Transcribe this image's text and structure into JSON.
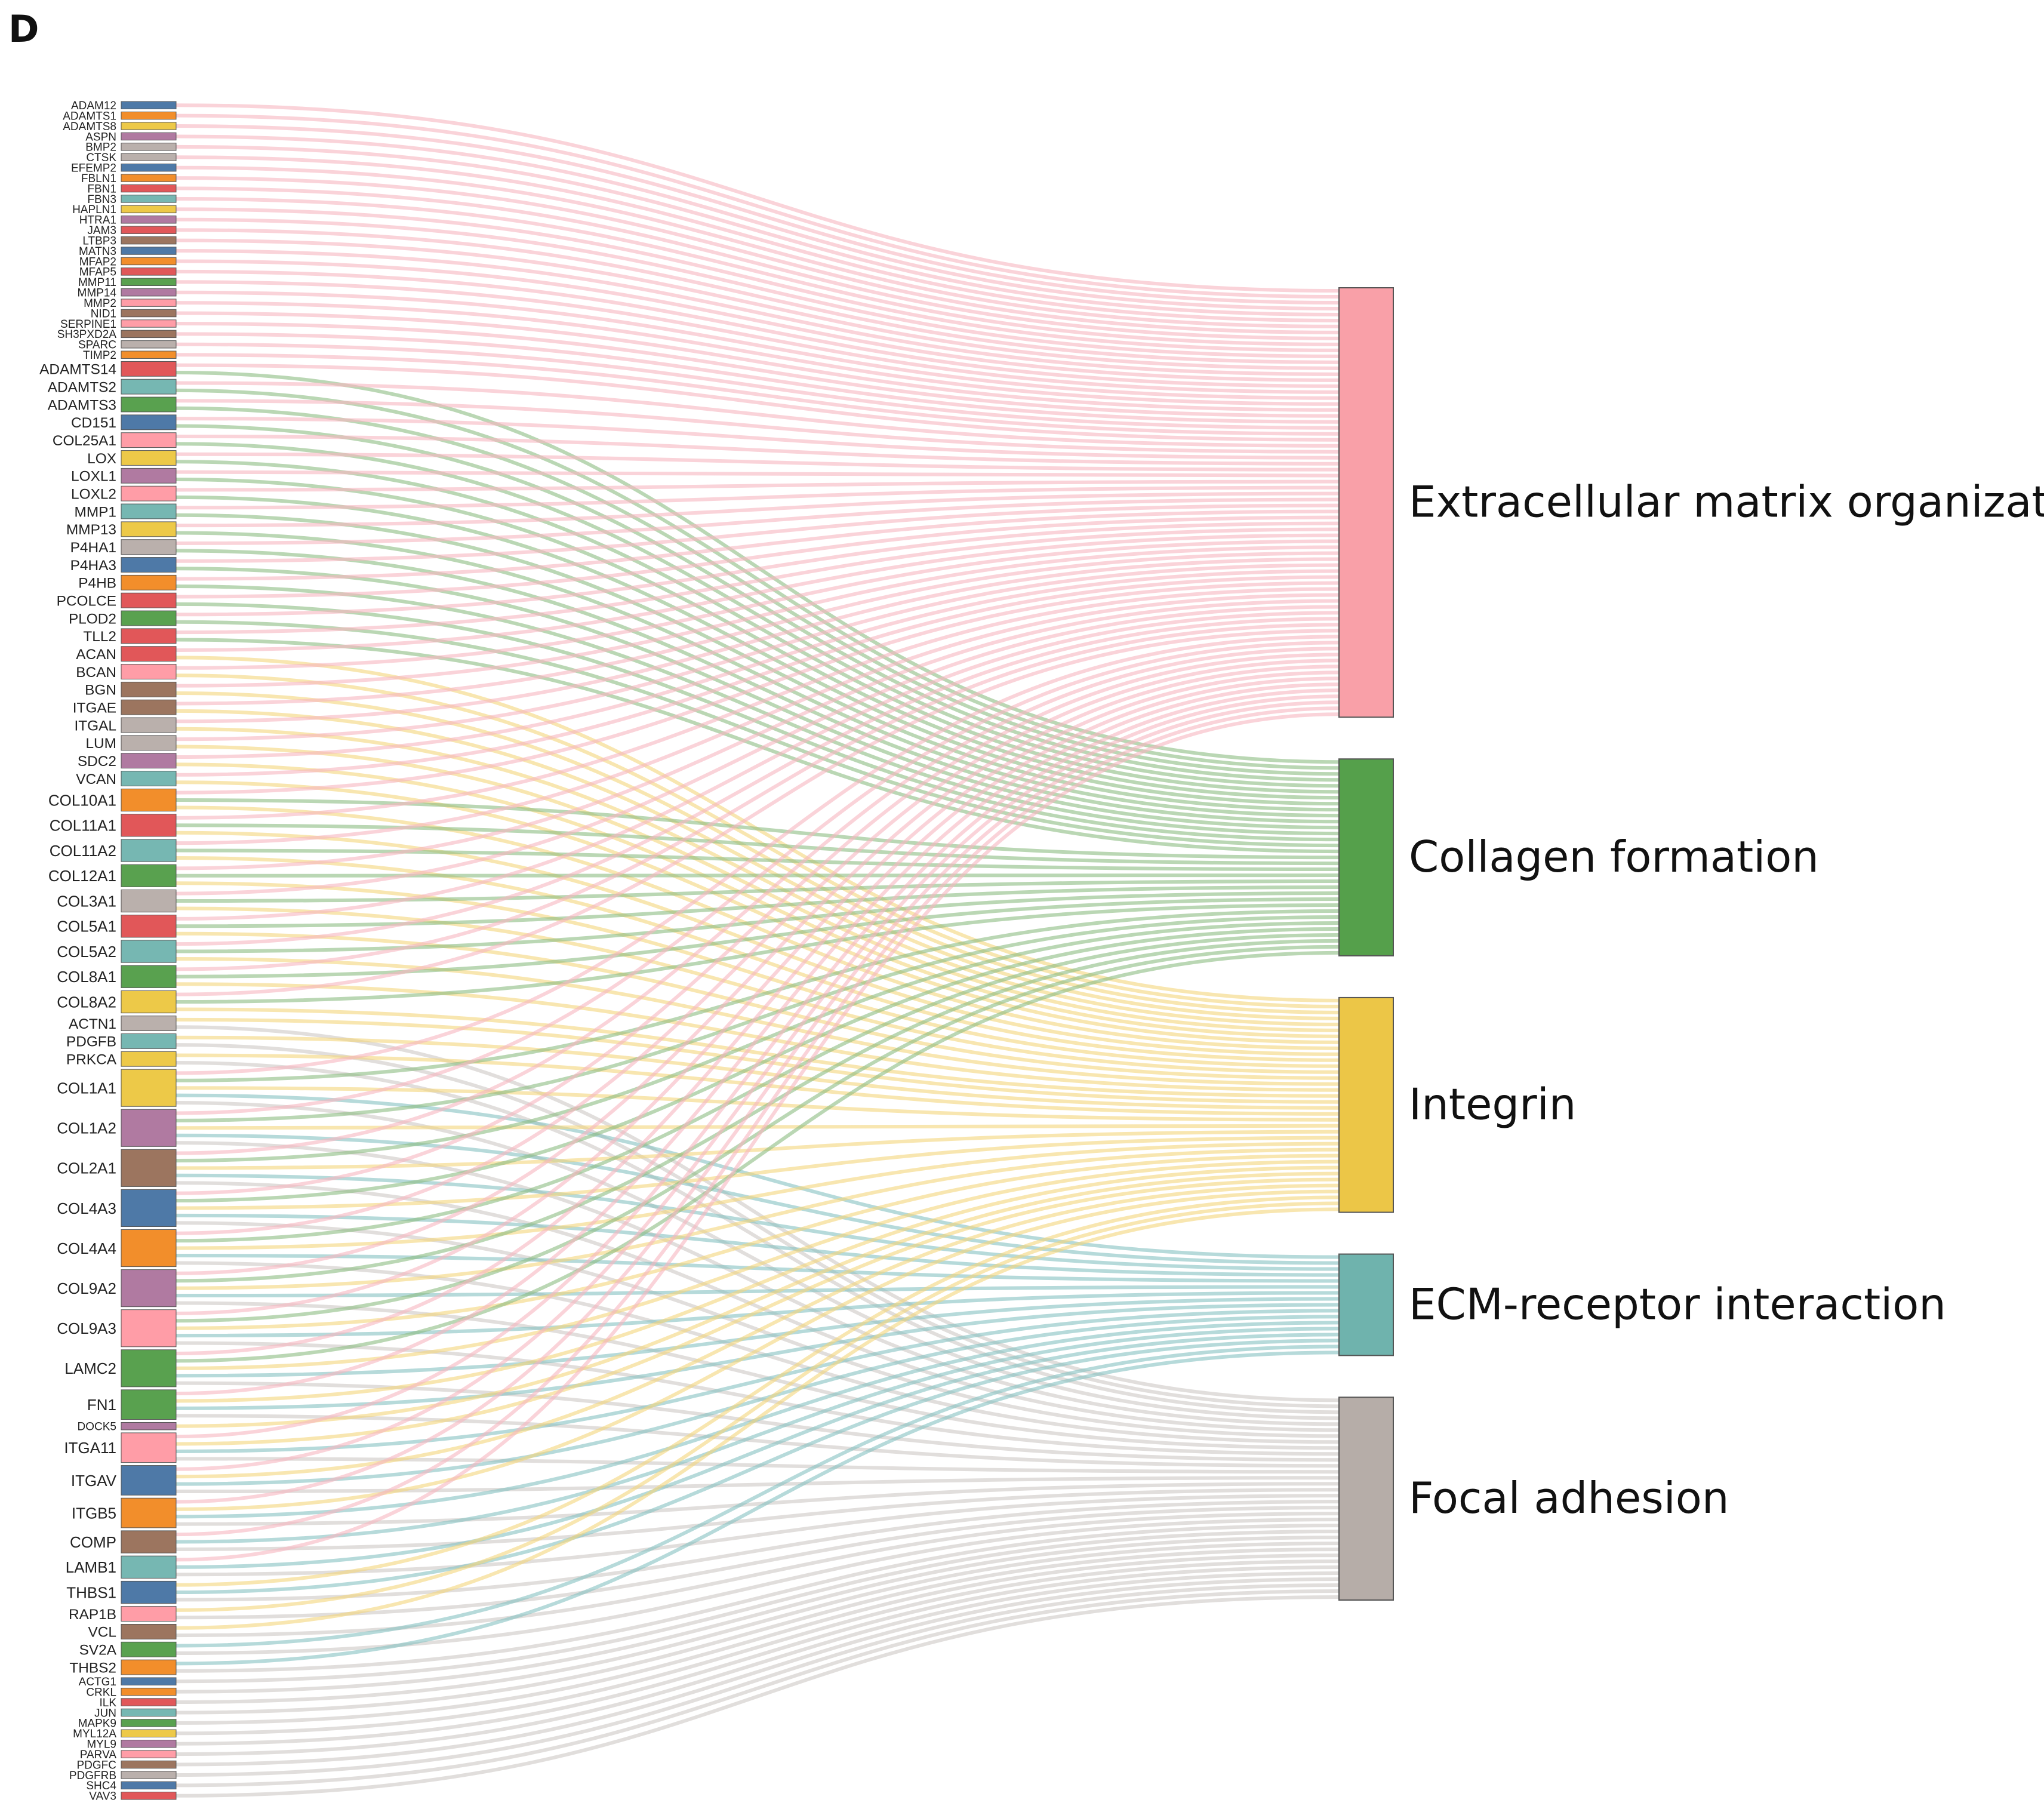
{
  "panel_label": "D",
  "chart_data": {
    "type": "sankey",
    "pathways": [
      {
        "name": "Extracellular matrix organization",
        "color": "#f9a0a8",
        "link_color": "#f7b6c0"
      },
      {
        "name": "Collagen formation",
        "color": "#55a04b",
        "link_color": "#8cbc82"
      },
      {
        "name": "Integrin",
        "color": "#ecc647",
        "link_color": "#f3d67c"
      },
      {
        "name": "ECM-receptor interaction",
        "color": "#6fb3ad",
        "link_color": "#86c2c2"
      },
      {
        "name": "Focal adhesion",
        "color": "#b6ada8",
        "link_color": "#cdc8c5"
      }
    ],
    "genes": [
      {
        "name": "ADAM12",
        "color": "#4e79a7",
        "pathways": [
          0
        ]
      },
      {
        "name": "ADAMTS1",
        "color": "#f28e2b",
        "pathways": [
          0
        ]
      },
      {
        "name": "ADAMTS8",
        "color": "#edc948",
        "pathways": [
          0
        ]
      },
      {
        "name": "ASPN",
        "color": "#b07aa1",
        "pathways": [
          0
        ]
      },
      {
        "name": "BMP2",
        "color": "#bab0ac",
        "pathways": [
          0
        ]
      },
      {
        "name": "CTSK",
        "color": "#bab0ac",
        "pathways": [
          0
        ]
      },
      {
        "name": "EFEMP2",
        "color": "#4e79a7",
        "pathways": [
          0
        ]
      },
      {
        "name": "FBLN1",
        "color": "#f28e2b",
        "pathways": [
          0
        ]
      },
      {
        "name": "FBN1",
        "color": "#e15759",
        "pathways": [
          0
        ]
      },
      {
        "name": "FBN3",
        "color": "#76b7b2",
        "pathways": [
          0
        ]
      },
      {
        "name": "HAPLN1",
        "color": "#edc948",
        "pathways": [
          0
        ]
      },
      {
        "name": "HTRA1",
        "color": "#b07aa1",
        "pathways": [
          0
        ]
      },
      {
        "name": "JAM3",
        "color": "#e15759",
        "pathways": [
          0
        ]
      },
      {
        "name": "LTBP3",
        "color": "#9c755f",
        "pathways": [
          0
        ]
      },
      {
        "name": "MATN3",
        "color": "#4e79a7",
        "pathways": [
          0
        ]
      },
      {
        "name": "MFAP2",
        "color": "#f28e2b",
        "pathways": [
          0
        ]
      },
      {
        "name": "MFAP5",
        "color": "#e15759",
        "pathways": [
          0
        ]
      },
      {
        "name": "MMP11",
        "color": "#59a14f",
        "pathways": [
          0
        ]
      },
      {
        "name": "MMP14",
        "color": "#b07aa1",
        "pathways": [
          0
        ]
      },
      {
        "name": "MMP2",
        "color": "#ff9da7",
        "pathways": [
          0
        ]
      },
      {
        "name": "NID1",
        "color": "#9c755f",
        "pathways": [
          0
        ]
      },
      {
        "name": "SERPINE1",
        "color": "#ff9da7",
        "pathways": [
          0
        ]
      },
      {
        "name": "SH3PXD2A",
        "color": "#9c755f",
        "pathways": [
          0
        ]
      },
      {
        "name": "SPARC",
        "color": "#bab0ac",
        "pathways": [
          0
        ]
      },
      {
        "name": "TIMP2",
        "color": "#f28e2b",
        "pathways": [
          0
        ]
      },
      {
        "name": "ADAMTS14",
        "color": "#e15759",
        "pathways": [
          0,
          1
        ]
      },
      {
        "name": "ADAMTS2",
        "color": "#76b7b2",
        "pathways": [
          0,
          1
        ]
      },
      {
        "name": "ADAMTS3",
        "color": "#59a14f",
        "pathways": [
          0,
          1
        ]
      },
      {
        "name": "CD151",
        "color": "#4e79a7",
        "pathways": [
          0,
          1
        ]
      },
      {
        "name": "COL25A1",
        "color": "#ff9da7",
        "pathways": [
          0,
          1
        ]
      },
      {
        "name": "LOX",
        "color": "#edc948",
        "pathways": [
          0,
          1
        ]
      },
      {
        "name": "LOXL1",
        "color": "#b07aa1",
        "pathways": [
          0,
          1
        ]
      },
      {
        "name": "LOXL2",
        "color": "#ff9da7",
        "pathways": [
          0,
          1
        ]
      },
      {
        "name": "MMP1",
        "color": "#76b7b2",
        "pathways": [
          0,
          1
        ]
      },
      {
        "name": "MMP13",
        "color": "#edc948",
        "pathways": [
          0,
          1
        ]
      },
      {
        "name": "P4HA1",
        "color": "#bab0ac",
        "pathways": [
          0,
          1
        ]
      },
      {
        "name": "P4HA3",
        "color": "#4e79a7",
        "pathways": [
          0,
          1
        ]
      },
      {
        "name": "P4HB",
        "color": "#f28e2b",
        "pathways": [
          0,
          1
        ]
      },
      {
        "name": "PCOLCE",
        "color": "#e15759",
        "pathways": [
          0,
          1
        ]
      },
      {
        "name": "PLOD2",
        "color": "#59a14f",
        "pathways": [
          0,
          1
        ]
      },
      {
        "name": "TLL2",
        "color": "#e15759",
        "pathways": [
          0,
          1
        ]
      },
      {
        "name": "ACAN",
        "color": "#e15759",
        "pathways": [
          0,
          2
        ]
      },
      {
        "name": "BCAN",
        "color": "#ff9da7",
        "pathways": [
          0,
          2
        ]
      },
      {
        "name": "BGN",
        "color": "#9c755f",
        "pathways": [
          0,
          2
        ]
      },
      {
        "name": "ITGAE",
        "color": "#9c755f",
        "pathways": [
          0,
          2
        ]
      },
      {
        "name": "ITGAL",
        "color": "#bab0ac",
        "pathways": [
          0,
          2
        ]
      },
      {
        "name": "LUM",
        "color": "#bab0ac",
        "pathways": [
          0,
          2
        ]
      },
      {
        "name": "SDC2",
        "color": "#b07aa1",
        "pathways": [
          0,
          2
        ]
      },
      {
        "name": "VCAN",
        "color": "#76b7b2",
        "pathways": [
          0,
          2
        ]
      },
      {
        "name": "COL10A1",
        "color": "#f28e2b",
        "pathways": [
          0,
          1,
          2
        ]
      },
      {
        "name": "COL11A1",
        "color": "#e15759",
        "pathways": [
          0,
          1,
          2
        ]
      },
      {
        "name": "COL11A2",
        "color": "#76b7b2",
        "pathways": [
          0,
          1,
          2
        ]
      },
      {
        "name": "COL12A1",
        "color": "#59a14f",
        "pathways": [
          0,
          1,
          2
        ]
      },
      {
        "name": "COL3A1",
        "color": "#bab0ac",
        "pathways": [
          0,
          1,
          2
        ]
      },
      {
        "name": "COL5A1",
        "color": "#e15759",
        "pathways": [
          0,
          1,
          2
        ]
      },
      {
        "name": "COL5A2",
        "color": "#76b7b2",
        "pathways": [
          0,
          1,
          2
        ]
      },
      {
        "name": "COL8A1",
        "color": "#59a14f",
        "pathways": [
          0,
          1,
          2
        ]
      },
      {
        "name": "COL8A2",
        "color": "#edc948",
        "pathways": [
          0,
          1,
          2
        ]
      },
      {
        "name": "ACTN1",
        "color": "#bab0ac",
        "pathways": [
          2,
          4
        ]
      },
      {
        "name": "PDGFB",
        "color": "#76b7b2",
        "pathways": [
          2,
          4
        ]
      },
      {
        "name": "PRKCA",
        "color": "#edc948",
        "pathways": [
          2,
          4
        ]
      },
      {
        "name": "COL1A1",
        "color": "#edc948",
        "pathways": [
          0,
          1,
          2,
          3,
          4
        ]
      },
      {
        "name": "COL1A2",
        "color": "#b07aa1",
        "pathways": [
          0,
          1,
          2,
          3,
          4
        ]
      },
      {
        "name": "COL2A1",
        "color": "#9c755f",
        "pathways": [
          0,
          1,
          2,
          3,
          4
        ]
      },
      {
        "name": "COL4A3",
        "color": "#4e79a7",
        "pathways": [
          0,
          1,
          2,
          3,
          4
        ]
      },
      {
        "name": "COL4A4",
        "color": "#f28e2b",
        "pathways": [
          0,
          1,
          2,
          3,
          4
        ]
      },
      {
        "name": "COL9A2",
        "color": "#b07aa1",
        "pathways": [
          0,
          1,
          2,
          3,
          4
        ]
      },
      {
        "name": "COL9A3",
        "color": "#ff9da7",
        "pathways": [
          0,
          1,
          2,
          3,
          4
        ]
      },
      {
        "name": "LAMC2",
        "color": "#59a14f",
        "pathways": [
          0,
          1,
          2,
          3,
          4
        ]
      },
      {
        "name": "FN1",
        "color": "#59a14f",
        "pathways": [
          0,
          2,
          3,
          4
        ]
      },
      {
        "name": "DOCK5",
        "color": "#b07aa1",
        "pathways": [
          2
        ]
      },
      {
        "name": "ITGA11",
        "color": "#ff9da7",
        "pathways": [
          0,
          2,
          3,
          4
        ]
      },
      {
        "name": "ITGAV",
        "color": "#4e79a7",
        "pathways": [
          0,
          2,
          3,
          4
        ]
      },
      {
        "name": "ITGB5",
        "color": "#f28e2b",
        "pathways": [
          0,
          2,
          3,
          4
        ]
      },
      {
        "name": "COMP",
        "color": "#9c755f",
        "pathways": [
          0,
          3,
          4
        ]
      },
      {
        "name": "LAMB1",
        "color": "#76b7b2",
        "pathways": [
          0,
          3,
          4
        ]
      },
      {
        "name": "THBS1",
        "color": "#4e79a7",
        "pathways": [
          2,
          3,
          4
        ]
      },
      {
        "name": "RAP1B",
        "color": "#ff9da7",
        "pathways": [
          2,
          4
        ]
      },
      {
        "name": "VCL",
        "color": "#9c755f",
        "pathways": [
          2,
          4
        ]
      },
      {
        "name": "SV2A",
        "color": "#59a14f",
        "pathways": [
          3,
          4
        ]
      },
      {
        "name": "THBS2",
        "color": "#f28e2b",
        "pathways": [
          3,
          4
        ]
      },
      {
        "name": "ACTG1",
        "color": "#4e79a7",
        "pathways": [
          4
        ]
      },
      {
        "name": "CRKL",
        "color": "#f28e2b",
        "pathways": [
          4
        ]
      },
      {
        "name": "ILK",
        "color": "#e15759",
        "pathways": [
          4
        ]
      },
      {
        "name": "JUN",
        "color": "#76b7b2",
        "pathways": [
          4
        ]
      },
      {
        "name": "MAPK9",
        "color": "#59a14f",
        "pathways": [
          4
        ]
      },
      {
        "name": "MYL12A",
        "color": "#edc948",
        "pathways": [
          4
        ]
      },
      {
        "name": "MYL9",
        "color": "#b07aa1",
        "pathways": [
          4
        ]
      },
      {
        "name": "PARVA",
        "color": "#ff9da7",
        "pathways": [
          4
        ]
      },
      {
        "name": "PDGFC",
        "color": "#9c755f",
        "pathways": [
          4
        ]
      },
      {
        "name": "PDGFRB",
        "color": "#bab0ac",
        "pathways": [
          4
        ]
      },
      {
        "name": "SHC4",
        "color": "#4e79a7",
        "pathways": [
          4
        ]
      },
      {
        "name": "VAV3",
        "color": "#e15759",
        "pathways": [
          4
        ]
      }
    ]
  }
}
